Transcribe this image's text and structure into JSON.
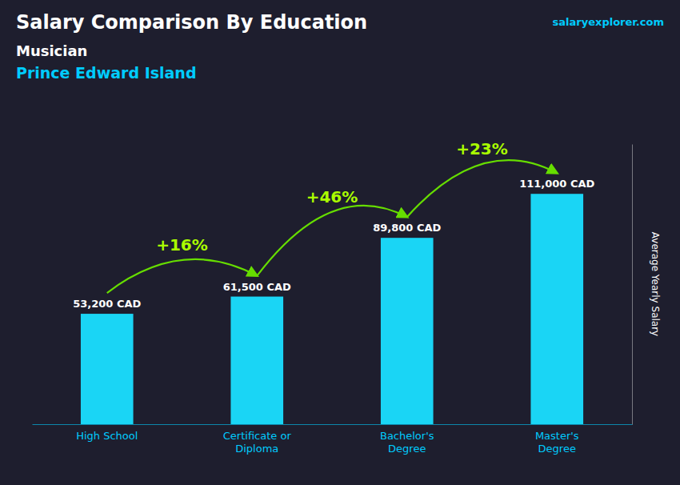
{
  "chart_data": {
    "type": "bar",
    "title": "Salary Comparison By Education",
    "subtitle": [
      "Musician",
      "Prince Edward Island"
    ],
    "source": "salaryexplorer.com",
    "ylabel": "Average Yearly Salary",
    "categories": [
      "High School",
      "Certificate or\nDiploma",
      "Bachelor's\nDegree",
      "Master's\nDegree"
    ],
    "values": [
      53200,
      61500,
      89800,
      111000
    ],
    "value_labels": [
      "53,200 CAD",
      "61,500 CAD",
      "89,800 CAD",
      "111,000 CAD"
    ],
    "data_labels": true,
    "annotations": [
      "+16%",
      "+46%",
      "+23%"
    ],
    "color": "#1ad5f5",
    "ylim": [
      0,
      135000
    ],
    "grid": false,
    "tick_labels": "x"
  }
}
